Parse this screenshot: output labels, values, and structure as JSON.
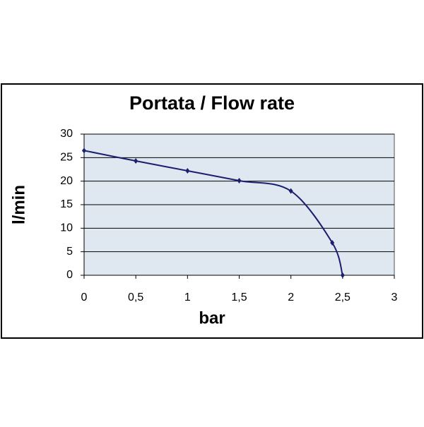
{
  "chart_data": {
    "type": "line",
    "title": "Portata / Flow rate",
    "x_label": "bar",
    "y_label": "l/min",
    "x": [
      0,
      0.5,
      1,
      1.5,
      2,
      2.4,
      2.5
    ],
    "series": [
      {
        "color": "#1c1f6e",
        "values": [
          26.5,
          24.3,
          22.2,
          20.1,
          17.9,
          6.9,
          0
        ]
      }
    ],
    "xlim": [
      0,
      3
    ],
    "ylim": [
      0,
      30
    ],
    "xticks": [
      0,
      {
        "value": 0.5,
        "label": "0,5"
      },
      1,
      {
        "value": 1.5,
        "label": "1,5"
      },
      2,
      {
        "value": 2.5,
        "label": "2,5"
      },
      3
    ],
    "yticks": [
      0,
      5,
      10,
      15,
      20,
      25,
      30
    ],
    "grid": true,
    "plot_background": "#dfe7f1"
  }
}
